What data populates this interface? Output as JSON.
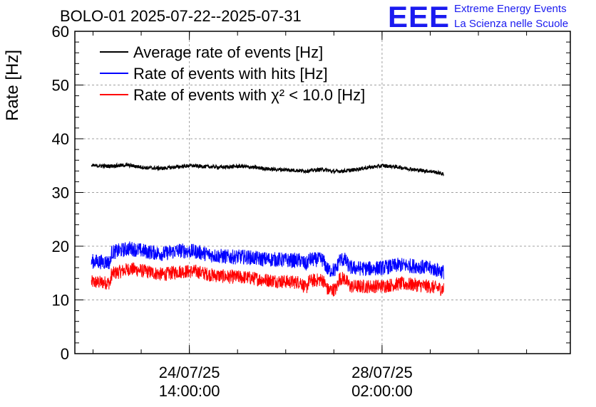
{
  "header": {
    "title": "BOLO-01 2025-07-22--2025-07-31",
    "logo_text": "EEE",
    "logo_line1": "Extreme Energy Events",
    "logo_line2": "La Scienza nelle Scuole"
  },
  "colors": {
    "black": "#000000",
    "blue": "#0000ff",
    "red": "#ff0000",
    "logo": "#1a1af0",
    "grid": "#a0a0a0"
  },
  "chart_data": {
    "type": "line",
    "ylabel": "Rate [Hz]",
    "ylim": [
      0,
      60
    ],
    "yticks": [
      0,
      10,
      20,
      30,
      40,
      50,
      60
    ],
    "x_unit": "days",
    "x_range": [
      0,
      9
    ],
    "x_ticks": [
      {
        "label": [
          "24/07/25",
          "14:00:00"
        ],
        "pos": 2.08
      },
      {
        "label": [
          "28/07/25",
          "02:00:00"
        ],
        "pos": 5.58
      }
    ],
    "grid": true,
    "legend_position": "top-left",
    "series": [
      {
        "name": "Average rate of events [Hz]",
        "color": "#000000",
        "points": [
          [
            0.3,
            35.0
          ],
          [
            0.6,
            34.9
          ],
          [
            0.95,
            35.1
          ],
          [
            1.3,
            34.6
          ],
          [
            1.6,
            34.5
          ],
          [
            1.9,
            34.8
          ],
          [
            2.1,
            35.0
          ],
          [
            2.4,
            34.8
          ],
          [
            2.7,
            34.7
          ],
          [
            3.0,
            34.9
          ],
          [
            3.3,
            34.6
          ],
          [
            3.6,
            34.3
          ],
          [
            3.9,
            34.2
          ],
          [
            4.2,
            34.0
          ],
          [
            4.5,
            34.3
          ],
          [
            4.7,
            33.9
          ],
          [
            5.0,
            34.1
          ],
          [
            5.3,
            34.6
          ],
          [
            5.6,
            35.0
          ],
          [
            5.9,
            34.7
          ],
          [
            6.2,
            34.2
          ],
          [
            6.5,
            33.9
          ],
          [
            6.7,
            33.4
          ]
        ],
        "noise": 0.35
      },
      {
        "name": "Rate of events with hits [Hz]",
        "color": "#0000ff",
        "points": [
          [
            0.3,
            17.2
          ],
          [
            0.65,
            17.0
          ],
          [
            0.66,
            18.8
          ],
          [
            1.0,
            19.6
          ],
          [
            1.3,
            19.0
          ],
          [
            1.6,
            18.6
          ],
          [
            1.9,
            19.2
          ],
          [
            2.2,
            19.0
          ],
          [
            2.5,
            18.3
          ],
          [
            2.8,
            18.0
          ],
          [
            3.1,
            18.0
          ],
          [
            3.4,
            17.6
          ],
          [
            3.7,
            17.5
          ],
          [
            4.0,
            17.3
          ],
          [
            4.1,
            17.4
          ],
          [
            4.2,
            16.5
          ],
          [
            4.25,
            17.5
          ],
          [
            4.5,
            17.5
          ],
          [
            4.6,
            15.5
          ],
          [
            4.75,
            15.6
          ],
          [
            4.8,
            17.5
          ],
          [
            4.9,
            17.5
          ],
          [
            5.0,
            16.0
          ],
          [
            5.3,
            15.8
          ],
          [
            5.6,
            16.0
          ],
          [
            5.9,
            16.5
          ],
          [
            6.2,
            16.3
          ],
          [
            6.5,
            15.8
          ],
          [
            6.7,
            15.2
          ]
        ],
        "noise": 1.4
      },
      {
        "name": "Rate of events with χ² < 10.0 [Hz]",
        "color": "#ff0000",
        "points": [
          [
            0.3,
            13.3
          ],
          [
            0.65,
            13.2
          ],
          [
            0.66,
            14.8
          ],
          [
            1.0,
            15.8
          ],
          [
            1.3,
            15.3
          ],
          [
            1.6,
            14.7
          ],
          [
            1.9,
            15.3
          ],
          [
            2.2,
            15.3
          ],
          [
            2.5,
            14.6
          ],
          [
            2.8,
            14.3
          ],
          [
            3.1,
            14.2
          ],
          [
            3.4,
            13.8
          ],
          [
            3.7,
            13.5
          ],
          [
            4.0,
            13.3
          ],
          [
            4.1,
            13.4
          ],
          [
            4.2,
            12.0
          ],
          [
            4.25,
            13.5
          ],
          [
            4.5,
            13.8
          ],
          [
            4.6,
            11.8
          ],
          [
            4.75,
            12.0
          ],
          [
            4.8,
            14.0
          ],
          [
            4.9,
            14.0
          ],
          [
            5.0,
            12.5
          ],
          [
            5.3,
            12.5
          ],
          [
            5.6,
            12.6
          ],
          [
            5.9,
            13.0
          ],
          [
            6.2,
            12.8
          ],
          [
            6.5,
            12.4
          ],
          [
            6.7,
            12.0
          ]
        ],
        "noise": 1.3
      }
    ]
  }
}
